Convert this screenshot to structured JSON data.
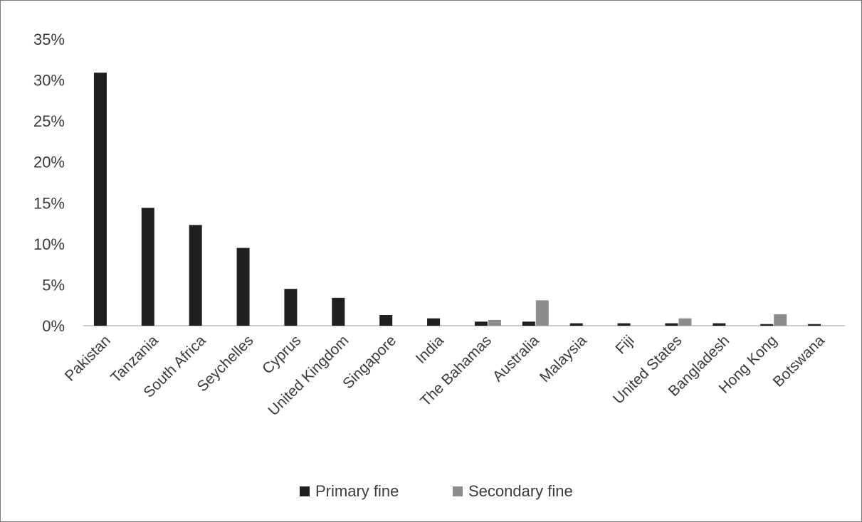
{
  "chart_data": {
    "type": "bar",
    "title": "",
    "xlabel": "",
    "ylabel": "",
    "ylim": [
      0,
      0.35
    ],
    "y_ticks": [
      "0%",
      "5%",
      "10%",
      "15%",
      "20%",
      "25%",
      "30%",
      "35%"
    ],
    "grid": false,
    "legend_position": "bottom",
    "categories": [
      "Pakistan",
      "Tanzania",
      "South Africa",
      "Seychelles",
      "Cyprus",
      "United Kingdom",
      "Singapore",
      "India",
      "The Bahamas",
      "Australia",
      "Malaysia",
      "Fiji",
      "United States",
      "Bangladesh",
      "Hong Kong",
      "Botswana"
    ],
    "series": [
      {
        "name": "Primary fine",
        "color": "#1f1f1f",
        "values": [
          0.309,
          0.144,
          0.123,
          0.095,
          0.045,
          0.034,
          0.013,
          0.009,
          0.005,
          0.005,
          0.003,
          0.003,
          0.003,
          0.003,
          0.002,
          0.002
        ]
      },
      {
        "name": "Secondary fine",
        "color": "#8c8c8c",
        "values": [
          0,
          0,
          0,
          0,
          0,
          0,
          0,
          0,
          0.007,
          0.031,
          0,
          0,
          0.009,
          0,
          0.014,
          0
        ]
      }
    ]
  }
}
